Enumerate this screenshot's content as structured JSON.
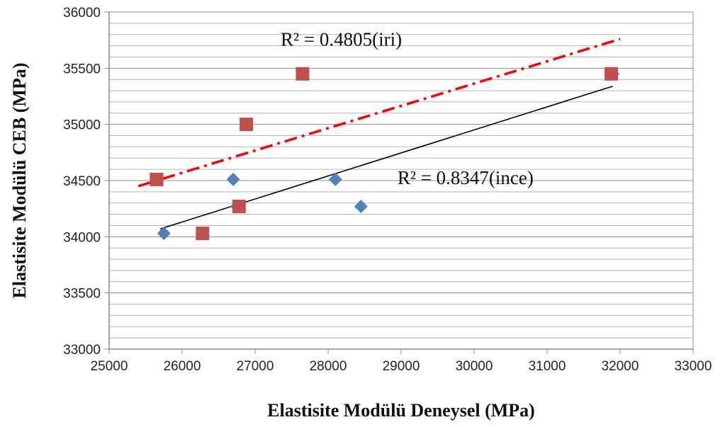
{
  "chart_data": {
    "type": "scatter",
    "xlabel": "Elastisite Modülü Deneysel (MPa)",
    "ylabel": "Elastisite Modülü CEB (MPa)",
    "xlim": [
      25000,
      33000
    ],
    "ylim": [
      33000,
      36000
    ],
    "x_ticks": [
      "25000",
      "26000",
      "27000",
      "28000",
      "29000",
      "30000",
      "31000",
      "32000",
      "33000"
    ],
    "y_ticks": [
      "33000",
      "33500",
      "34000",
      "34500",
      "35000",
      "35500",
      "36000"
    ],
    "grid": true,
    "series": [
      {
        "color": "#4f81bd",
        "marker": "diamond",
        "points": [
          {
            "x": 25750,
            "y": 34030
          },
          {
            "x": 26700,
            "y": 34510
          },
          {
            "x": 26750,
            "y": 34270
          },
          {
            "x": 28100,
            "y": 34510
          },
          {
            "x": 28450,
            "y": 34270
          },
          {
            "x": 31900,
            "y": 35450
          }
        ],
        "trendline": {
          "style": "solid",
          "color": "#000000",
          "x": [
            25700,
            31900
          ],
          "y": [
            34070,
            35340
          ]
        }
      },
      {
        "color": "#c0504d",
        "marker": "square",
        "points": [
          {
            "x": 25650,
            "y": 34510
          },
          {
            "x": 26280,
            "y": 34030
          },
          {
            "x": 26780,
            "y": 34270
          },
          {
            "x": 26880,
            "y": 35000
          },
          {
            "x": 27650,
            "y": 35450
          },
          {
            "x": 31880,
            "y": 35450
          }
        ],
        "trendline": {
          "style": "dash-dot",
          "color": "#ff0000",
          "x": [
            25400,
            32000
          ],
          "y": [
            34450,
            35760
          ]
        }
      }
    ],
    "annotations": [
      {
        "text": "R² = 0.4805(iri)",
        "x": 27350,
        "y": 35700
      },
      {
        "text": "R² = 0.8347(ince)",
        "x": 28950,
        "y": 34470
      }
    ]
  }
}
